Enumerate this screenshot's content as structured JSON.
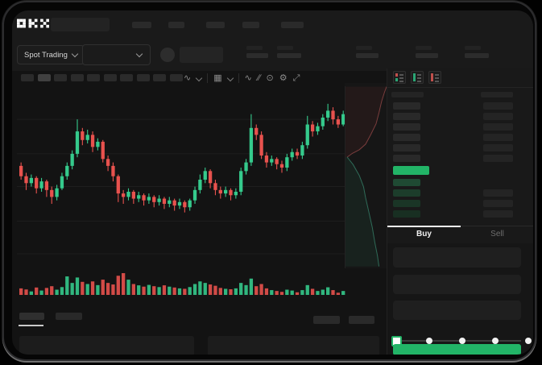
{
  "brand": {
    "name": "OKX"
  },
  "header": {
    "nav_placeholder_count": 5,
    "market_selector": {
      "label": "Spot Trading"
    },
    "pair_dropdown": {
      "selected_value": ""
    },
    "stats_placeholder_count": 5
  },
  "chart_toolbar": {
    "timeframe_placeholder_count": 10,
    "selected_timeframe_index": 1,
    "icons": [
      {
        "name": "indicators-icon",
        "glyph": "∿"
      },
      {
        "name": "indicators-chevron-icon",
        "chev": true
      },
      {
        "sep": true
      },
      {
        "name": "chart-style-icon",
        "glyph": "▦"
      },
      {
        "name": "chart-style-chevron-icon",
        "chev": true
      },
      {
        "sep": true
      },
      {
        "name": "compare-icon",
        "glyph": "∿"
      },
      {
        "name": "drawing-tools-icon",
        "glyph": "∕∕"
      },
      {
        "name": "screenshot-icon",
        "glyph": "⊙"
      },
      {
        "name": "chart-settings-icon",
        "glyph": "⚙"
      },
      {
        "name": "fullscreen-icon",
        "glyph": "⤢"
      }
    ]
  },
  "chart_data": {
    "type": "candlestick",
    "title": "",
    "axis_labels_visible": false,
    "note": "skeleton trading chart, no numeric axis labels rendered in UI",
    "price_scale_norm": [
      0,
      100
    ],
    "grid_lines_price": [
      85,
      65,
      46,
      26,
      7
    ],
    "candles": [
      [
        58,
        60,
        50,
        52
      ],
      [
        52,
        54,
        44,
        48
      ],
      [
        48,
        53,
        46,
        51
      ],
      [
        51,
        52,
        42,
        45
      ],
      [
        45,
        51,
        43,
        49
      ],
      [
        49,
        50,
        40,
        44
      ],
      [
        44,
        46,
        36,
        40
      ],
      [
        40,
        47,
        38,
        45
      ],
      [
        45,
        54,
        44,
        52
      ],
      [
        52,
        60,
        50,
        58
      ],
      [
        58,
        67,
        56,
        65
      ],
      [
        65,
        85,
        63,
        78
      ],
      [
        78,
        80,
        70,
        73
      ],
      [
        73,
        79,
        71,
        76
      ],
      [
        76,
        78,
        66,
        69
      ],
      [
        69,
        74,
        67,
        72
      ],
      [
        72,
        73,
        60,
        62
      ],
      [
        62,
        64,
        55,
        58
      ],
      [
        58,
        60,
        49,
        52
      ],
      [
        52,
        53,
        37,
        42
      ],
      [
        42,
        44,
        36,
        40
      ],
      [
        40,
        45,
        38,
        43
      ],
      [
        43,
        44,
        36,
        39
      ],
      [
        39,
        43,
        37,
        41
      ],
      [
        41,
        42,
        35,
        38
      ],
      [
        38,
        42,
        36,
        40
      ],
      [
        40,
        41,
        34,
        37
      ],
      [
        37,
        41,
        35,
        39
      ],
      [
        39,
        40,
        33,
        36
      ],
      [
        36,
        40,
        34,
        38
      ],
      [
        38,
        39,
        32,
        35
      ],
      [
        35,
        39,
        33,
        37
      ],
      [
        37,
        38,
        31,
        34
      ],
      [
        34,
        39,
        32,
        38
      ],
      [
        38,
        46,
        36,
        44
      ],
      [
        44,
        53,
        42,
        50
      ],
      [
        50,
        57,
        48,
        55
      ],
      [
        55,
        56,
        45,
        48
      ],
      [
        48,
        50,
        41,
        44
      ],
      [
        44,
        46,
        39,
        42
      ],
      [
        42,
        46,
        40,
        44
      ],
      [
        44,
        45,
        38,
        41
      ],
      [
        41,
        45,
        39,
        43
      ],
      [
        43,
        57,
        41,
        55
      ],
      [
        55,
        62,
        53,
        60
      ],
      [
        60,
        88,
        58,
        80
      ],
      [
        80,
        82,
        73,
        76
      ],
      [
        76,
        78,
        62,
        64
      ],
      [
        64,
        66,
        57,
        60
      ],
      [
        60,
        64,
        58,
        62
      ],
      [
        62,
        63,
        56,
        59
      ],
      [
        59,
        61,
        54,
        57
      ],
      [
        57,
        65,
        55,
        63
      ],
      [
        63,
        68,
        61,
        66
      ],
      [
        66,
        68,
        62,
        64
      ],
      [
        64,
        72,
        62,
        70
      ],
      [
        70,
        87,
        68,
        82
      ],
      [
        82,
        84,
        75,
        78
      ],
      [
        78,
        83,
        76,
        81
      ],
      [
        81,
        88,
        79,
        86
      ],
      [
        86,
        94,
        84,
        90
      ],
      [
        90,
        92,
        82,
        85
      ],
      [
        85,
        87,
        80,
        82
      ],
      [
        82,
        90,
        81,
        88
      ]
    ],
    "volume": [
      30,
      25,
      16,
      34,
      20,
      32,
      40,
      24,
      36,
      85,
      55,
      80,
      60,
      50,
      62,
      45,
      70,
      55,
      48,
      88,
      100,
      70,
      50,
      44,
      38,
      46,
      40,
      36,
      44,
      38,
      34,
      30,
      28,
      36,
      50,
      62,
      55,
      48,
      42,
      32,
      28,
      26,
      30,
      55,
      45,
      75,
      40,
      50,
      30,
      22,
      18,
      14,
      24,
      20,
      12,
      22,
      45,
      28,
      18,
      24,
      35,
      22,
      10,
      18
    ],
    "depth": {
      "asks": [
        [
          1.0,
          0.02
        ],
        [
          0.95,
          0.05
        ],
        [
          0.88,
          0.1
        ],
        [
          0.82,
          0.16
        ],
        [
          0.75,
          0.22
        ],
        [
          0.62,
          0.28
        ],
        [
          0.5,
          0.33
        ],
        [
          0.35,
          0.36
        ],
        [
          0.18,
          0.38
        ],
        [
          0.06,
          0.4
        ]
      ],
      "bids": [
        [
          0.06,
          0.4
        ],
        [
          0.2,
          0.44
        ],
        [
          0.35,
          0.5
        ],
        [
          0.45,
          0.56
        ],
        [
          0.5,
          0.62
        ],
        [
          0.58,
          0.7
        ],
        [
          0.66,
          0.78
        ],
        [
          0.72,
          0.86
        ],
        [
          0.78,
          0.93
        ],
        [
          0.82,
          0.99
        ]
      ]
    },
    "colors": {
      "up": "#35ca8c",
      "down": "#e8524e",
      "depth_ask_line": "#7a3d3d",
      "depth_bid_line": "#2f6b58",
      "grid": "#1e1e1e"
    }
  },
  "order_book": {
    "view_toggles": [
      {
        "name": "book-combined-view-icon"
      },
      {
        "name": "book-bids-only-view-icon"
      },
      {
        "name": "book-asks-only-view-icon"
      }
    ],
    "asks_rows": [
      {
        "amount": true
      },
      {
        "amount": true
      },
      {
        "amount": true
      },
      {
        "amount": true
      },
      {
        "amount": true
      },
      {
        "amount": true
      }
    ],
    "current_price_bar_color": "#22b467",
    "bids_rows": [
      {
        "amount": false
      },
      {
        "amount": true
      },
      {
        "amount": true
      },
      {
        "amount": true
      }
    ],
    "bid_row_colors": [
      "#1f4a33",
      "#1c3d2b",
      "#1a3526",
      "#182f22"
    ]
  },
  "trade_panel": {
    "tabs": {
      "buy_label": "Buy",
      "sell_label": "Sell",
      "active": "Buy"
    },
    "field_placeholder_count": 3,
    "slider": {
      "stop_count": 5,
      "active_index": 0
    },
    "submit_button_color": "#22b467"
  },
  "bottom_section": {
    "tab_placeholder_count": 2,
    "active_tab_index": 0,
    "right_button_placeholder_count": 2,
    "table_placeholder_count": 2
  }
}
